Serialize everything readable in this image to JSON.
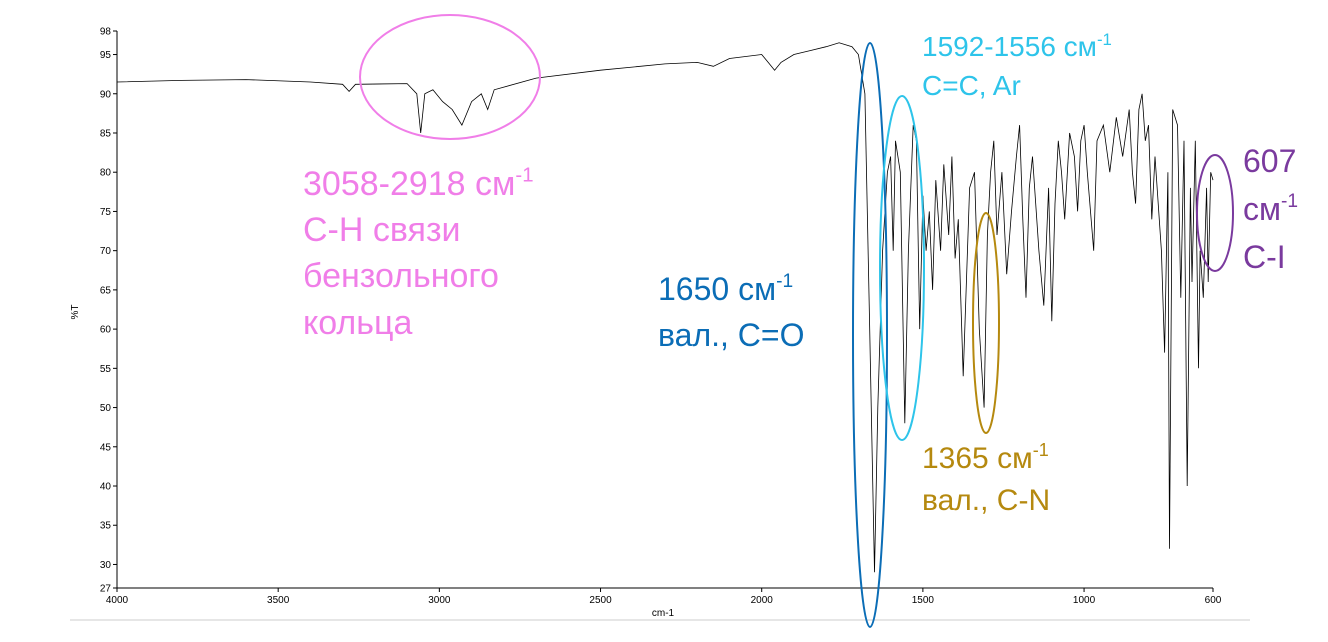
{
  "chart_data": {
    "type": "line",
    "xlabel": "cm-1",
    "ylabel": "%T",
    "xlim": [
      4000,
      600
    ],
    "ylim": [
      27,
      98
    ],
    "xticks": [
      4000,
      3500,
      3000,
      2500,
      2000,
      1500,
      1000,
      600
    ],
    "yticks": [
      27,
      30,
      35,
      40,
      45,
      50,
      55,
      60,
      65,
      70,
      75,
      80,
      85,
      90,
      95,
      98
    ],
    "series": [
      {
        "color": "#000000",
        "x": [
          4000,
          3800,
          3600,
          3400,
          3300,
          3280,
          3260,
          3100,
          3070,
          3058,
          3045,
          3020,
          2990,
          2960,
          2930,
          2900,
          2870,
          2850,
          2830,
          2700,
          2500,
          2300,
          2200,
          2150,
          2100,
          2000,
          1980,
          1960,
          1940,
          1900,
          1850,
          1800,
          1760,
          1720,
          1700,
          1680,
          1665,
          1650,
          1640,
          1625,
          1610,
          1600,
          1592,
          1585,
          1570,
          1556,
          1545,
          1530,
          1520,
          1510,
          1500,
          1490,
          1480,
          1470,
          1460,
          1445,
          1435,
          1420,
          1410,
          1400,
          1390,
          1375,
          1365,
          1355,
          1340,
          1325,
          1310,
          1300,
          1290,
          1280,
          1270,
          1255,
          1240,
          1225,
          1210,
          1200,
          1190,
          1180,
          1170,
          1160,
          1140,
          1125,
          1110,
          1100,
          1090,
          1080,
          1070,
          1060,
          1045,
          1030,
          1020,
          1010,
          1000,
          990,
          970,
          960,
          940,
          920,
          900,
          880,
          860,
          850,
          840,
          830,
          820,
          810,
          800,
          790,
          780,
          760,
          750,
          740,
          735,
          725,
          710,
          700,
          690,
          680,
          670,
          665,
          655,
          645,
          640,
          630,
          620,
          615,
          607,
          600
        ],
        "values": [
          91.5,
          91.7,
          91.8,
          91.5,
          91.2,
          90.3,
          91.2,
          91.3,
          90,
          85,
          90,
          90.5,
          89,
          88,
          86,
          89,
          90,
          88,
          90.5,
          92,
          93,
          93.8,
          94,
          93.5,
          94.5,
          95,
          94,
          93,
          94,
          95,
          95.5,
          96,
          96.5,
          96,
          95,
          90,
          60,
          29,
          50,
          70,
          80,
          82,
          70,
          84,
          80,
          48,
          70,
          86,
          84,
          60,
          77,
          70,
          75,
          65,
          79,
          70,
          81,
          72,
          82,
          69,
          74,
          54,
          66,
          78,
          80,
          60,
          50,
          72,
          80,
          84,
          72,
          80,
          67,
          75,
          82,
          86,
          74,
          64,
          78,
          82,
          70,
          63,
          78,
          61,
          76,
          84,
          80,
          74,
          85,
          82,
          75,
          84,
          86,
          80,
          70,
          84,
          86,
          80,
          87,
          82,
          88,
          80,
          76,
          88,
          90,
          84,
          86,
          74,
          82,
          70,
          57,
          80,
          32,
          88,
          86,
          64,
          84,
          40,
          78,
          66,
          84,
          55,
          70,
          64,
          78,
          66,
          80,
          79
        ]
      }
    ],
    "annotations": [
      {
        "color": "#f07ee8",
        "lines": [
          {
            "text": "3058-2918 см",
            "sup": "-1"
          },
          {
            "text": "C-H связи"
          },
          {
            "text": "бензольного"
          },
          {
            "text": "кольца"
          }
        ]
      },
      {
        "color": "#0b6db6",
        "lines": [
          {
            "text": "1650 см",
            "sup": "-1"
          },
          {
            "text": "вал., C=O"
          }
        ]
      },
      {
        "color": "#2ec4ea",
        "lines": [
          {
            "text": "1592-1556 см",
            "sup": "-1"
          },
          {
            "text": "C=C, Ar"
          }
        ]
      },
      {
        "color": "#b5890f",
        "lines": [
          {
            "text": "1365 см",
            "sup": "-1"
          },
          {
            "text": "вал., C-N"
          }
        ]
      },
      {
        "color": "#7a3a9e",
        "lines": [
          {
            "text": "607"
          },
          {
            "text": "см",
            "sup": "-1"
          },
          {
            "text": "C-I"
          }
        ]
      }
    ]
  }
}
